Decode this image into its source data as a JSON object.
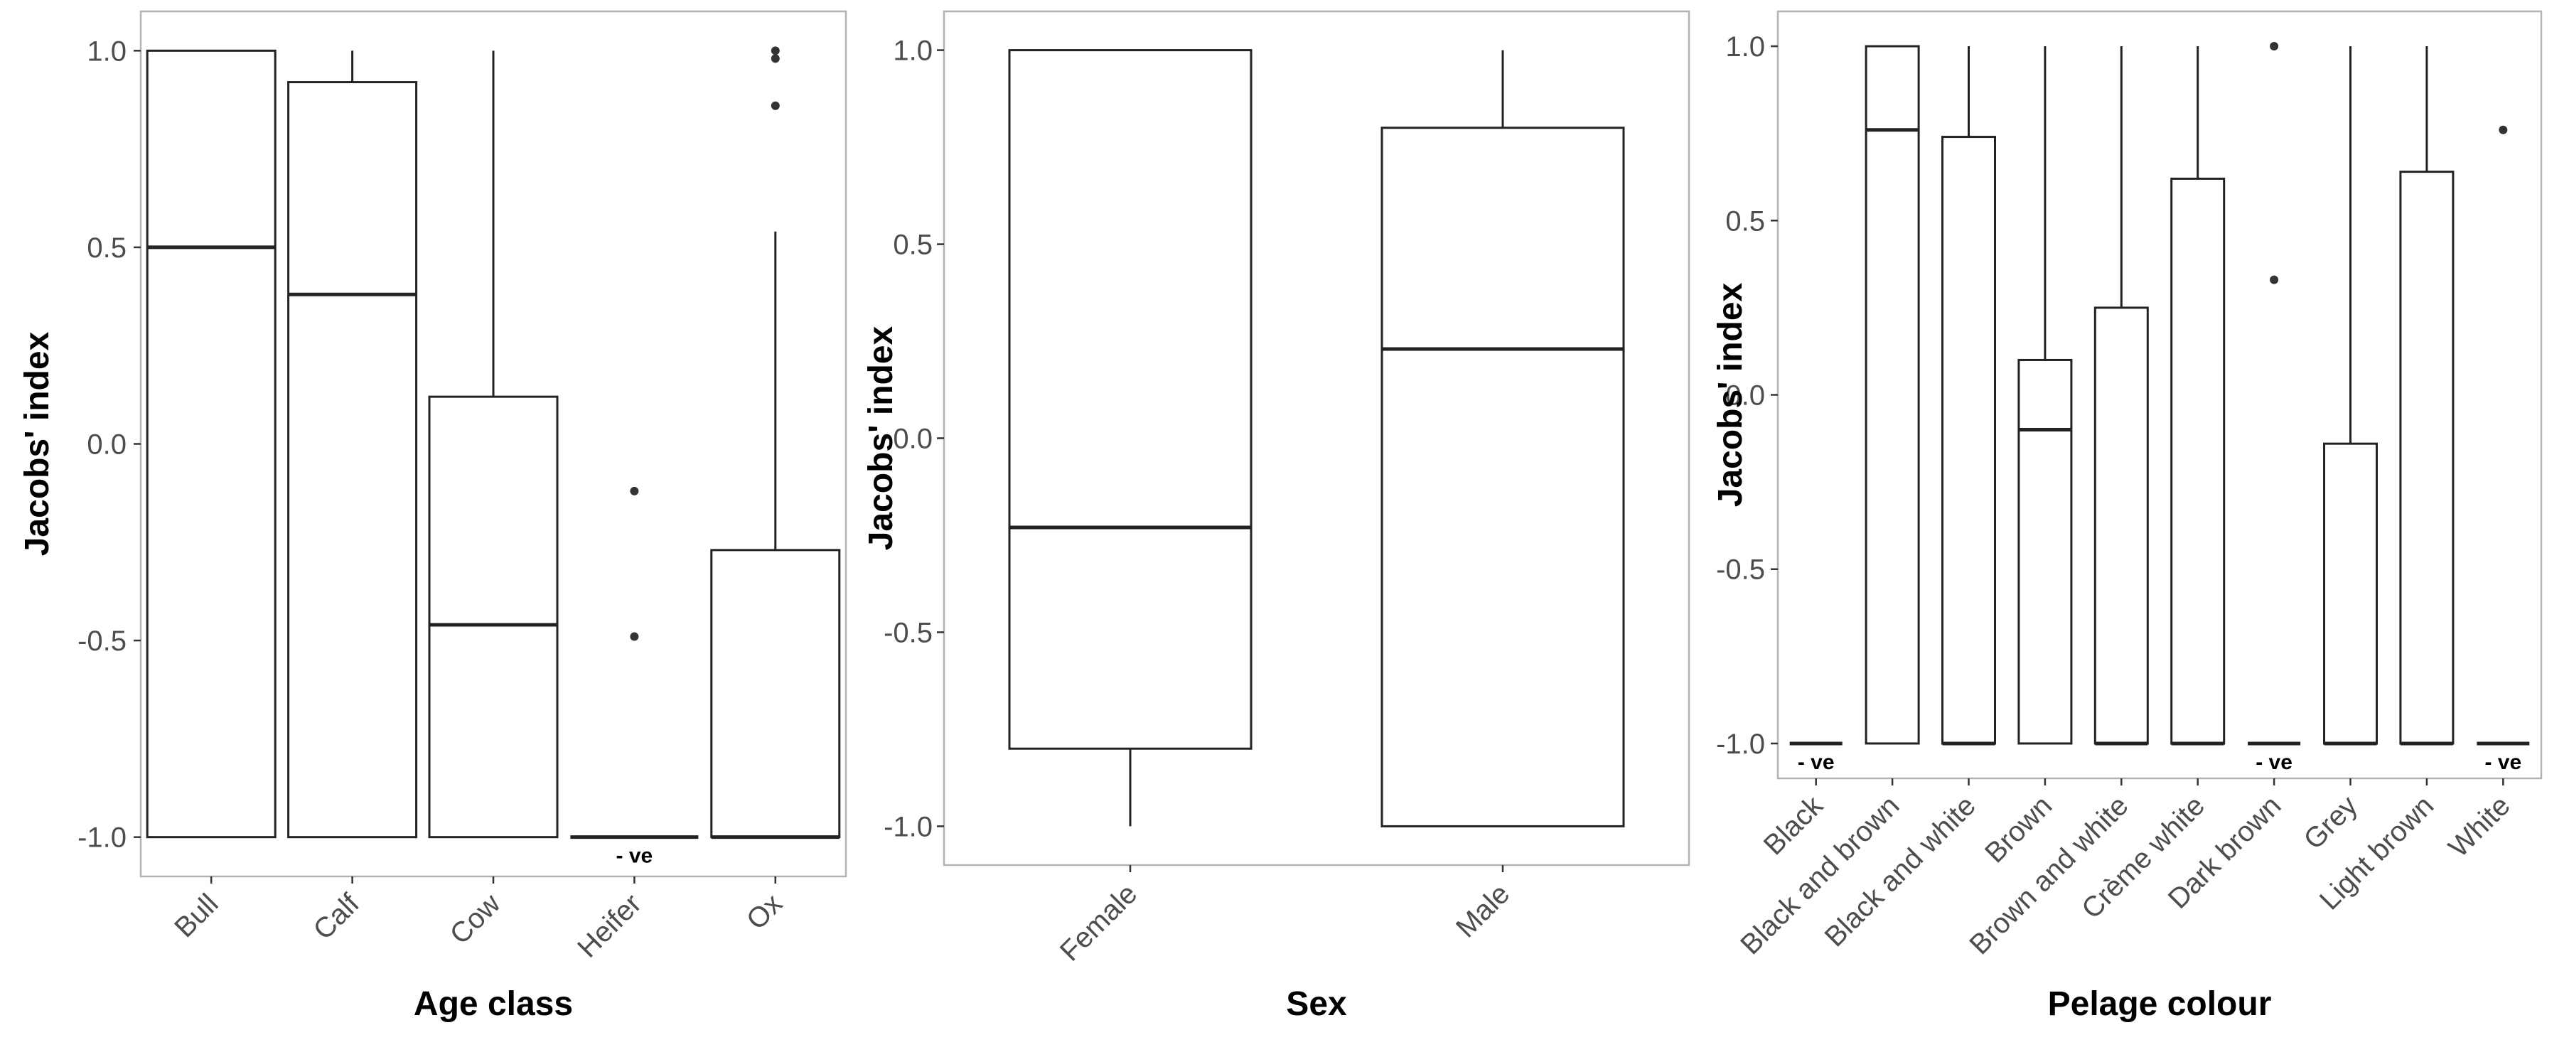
{
  "chart_data": [
    {
      "type": "box",
      "xlabel": "Age class",
      "ylabel": "Jacobs' index",
      "ylim": [
        -1.1,
        1.1
      ],
      "yticks": [
        "1.0",
        "0.5",
        "0.0",
        "-0.5",
        "-1.0"
      ],
      "ytick_values": [
        1.0,
        0.5,
        0.0,
        -0.5,
        -1.0
      ],
      "categories": [
        "Bull",
        "Calf",
        "Cow",
        "Heifer",
        "Ox"
      ],
      "boxes": [
        {
          "label": "Bull",
          "min": -1.0,
          "q1": -1.0,
          "median": 0.5,
          "q3": 1.0,
          "max": 1.0,
          "outliers": []
        },
        {
          "label": "Calf",
          "min": -1.0,
          "q1": -1.0,
          "median": 0.38,
          "q3": 0.92,
          "max": 1.0,
          "outliers": []
        },
        {
          "label": "Cow",
          "min": -1.0,
          "q1": -1.0,
          "median": -0.46,
          "q3": 0.12,
          "max": 1.0,
          "outliers": []
        },
        {
          "label": "Heifer",
          "min": -1.0,
          "q1": -1.0,
          "median": -1.0,
          "q3": -1.0,
          "max": -1.0,
          "outliers": [
            -0.12,
            -0.49
          ],
          "annotation": "- ve"
        },
        {
          "label": "Ox",
          "min": -1.0,
          "q1": -1.0,
          "median": -1.0,
          "q3": -0.27,
          "max": 0.54,
          "outliers": [
            1.0,
            0.98,
            0.86
          ]
        }
      ],
      "grid": false
    },
    {
      "type": "box",
      "xlabel": "Sex",
      "ylabel": "Jacobs' index",
      "ylim": [
        -1.1,
        1.1
      ],
      "yticks": [
        "1.0",
        "0.5",
        "0.0",
        "-0.5",
        "-1.0"
      ],
      "ytick_values": [
        1.0,
        0.5,
        0.0,
        -0.5,
        -1.0
      ],
      "categories": [
        "Female",
        "Male"
      ],
      "boxes": [
        {
          "label": "Female",
          "min": -1.0,
          "q1": -0.8,
          "median": -0.23,
          "q3": 1.0,
          "max": 1.0,
          "outliers": []
        },
        {
          "label": "Male",
          "min": -1.0,
          "q1": -1.0,
          "median": 0.23,
          "q3": 0.8,
          "max": 1.0,
          "outliers": []
        }
      ],
      "grid": false
    },
    {
      "type": "box",
      "xlabel": "Pelage colour",
      "ylabel": "Jacobs' index",
      "ylim": [
        -1.1,
        1.1
      ],
      "yticks": [
        "1.0",
        "0.5",
        "0.0",
        "-0.5",
        "-1.0"
      ],
      "ytick_values": [
        1.0,
        0.5,
        0.0,
        -0.5,
        -1.0
      ],
      "categories": [
        "Black",
        "Black and brown",
        "Black and white",
        "Brown",
        "Brown and white",
        "Crème white",
        "Dark brown",
        "Grey",
        "Light brown",
        "White"
      ],
      "boxes": [
        {
          "label": "Black",
          "min": -1.0,
          "q1": -1.0,
          "median": -1.0,
          "q3": -1.0,
          "max": -1.0,
          "outliers": [],
          "annotation": "- ve"
        },
        {
          "label": "Black and brown",
          "min": -1.0,
          "q1": -1.0,
          "median": 0.76,
          "q3": 1.0,
          "max": 1.0,
          "outliers": []
        },
        {
          "label": "Black and white",
          "min": -1.0,
          "q1": -1.0,
          "median": -1.0,
          "q3": 0.74,
          "max": 1.0,
          "outliers": []
        },
        {
          "label": "Brown",
          "min": -1.0,
          "q1": -1.0,
          "median": -0.1,
          "q3": 0.1,
          "max": 1.0,
          "outliers": []
        },
        {
          "label": "Brown and white",
          "min": -1.0,
          "q1": -1.0,
          "median": -1.0,
          "q3": 0.25,
          "max": 1.0,
          "outliers": []
        },
        {
          "label": "Crème white",
          "min": -1.0,
          "q1": -1.0,
          "median": -1.0,
          "q3": 0.62,
          "max": 1.0,
          "outliers": []
        },
        {
          "label": "Dark brown",
          "min": -1.0,
          "q1": -1.0,
          "median": -1.0,
          "q3": -1.0,
          "max": -1.0,
          "outliers": [
            1.0,
            0.33
          ],
          "annotation": "- ve"
        },
        {
          "label": "Grey",
          "min": -1.0,
          "q1": -1.0,
          "median": -1.0,
          "q3": -0.14,
          "max": 1.0,
          "outliers": []
        },
        {
          "label": "Light brown",
          "min": -1.0,
          "q1": -1.0,
          "median": -1.0,
          "q3": 0.64,
          "max": 1.0,
          "outliers": []
        },
        {
          "label": "White",
          "min": -1.0,
          "q1": -1.0,
          "median": -1.0,
          "q3": -1.0,
          "max": -1.0,
          "outliers": [
            0.76
          ],
          "annotation": "- ve"
        }
      ],
      "grid": false
    }
  ]
}
